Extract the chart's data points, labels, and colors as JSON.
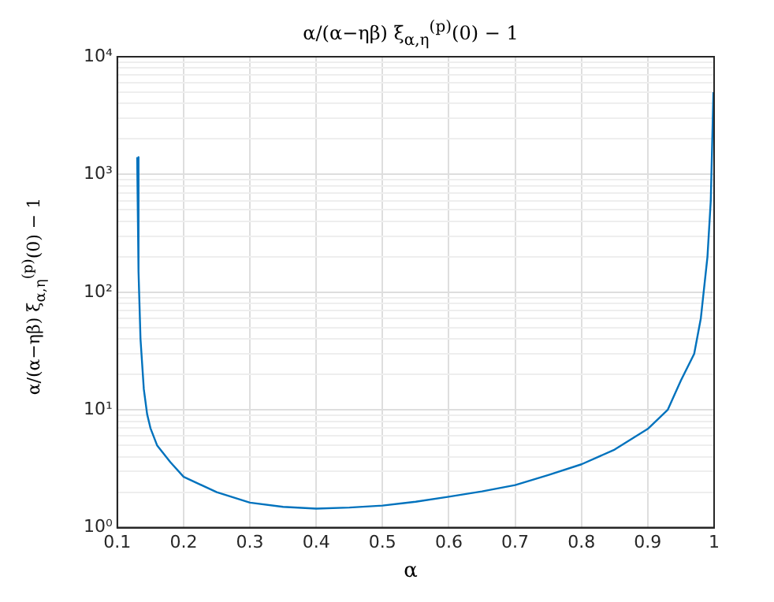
{
  "chart_data": {
    "type": "line",
    "title": "α/(α−ηβ) ξ$_{α,η}$$^{(p)}$(0) − 1",
    "xlabel": "α",
    "ylabel": "α/(α−ηβ) ξ$_{α,η}$$^{(p)}$(0) − 1",
    "x": [
      0.13,
      0.132,
      0.135,
      0.14,
      0.145,
      0.15,
      0.16,
      0.18,
      0.2,
      0.25,
      0.3,
      0.35,
      0.4,
      0.45,
      0.5,
      0.55,
      0.6,
      0.65,
      0.7,
      0.75,
      0.8,
      0.85,
      0.9,
      0.93,
      0.95,
      0.97,
      0.98,
      0.99,
      0.995,
      0.999
    ],
    "series": [
      {
        "color": "#0072bd",
        "values": [
          1400,
          150,
          40,
          15,
          9.2,
          7,
          5,
          3.6,
          2.7,
          2,
          1.63,
          1.5,
          1.45,
          1.48,
          1.54,
          1.66,
          1.83,
          2.03,
          2.3,
          2.8,
          3.45,
          4.6,
          6.9,
          10,
          17.8,
          30,
          60,
          200,
          600,
          5000
        ]
      }
    ],
    "xlim": [
      0.1,
      1
    ],
    "xticks": [
      0.1,
      0.2,
      0.3,
      0.4,
      0.5,
      0.6,
      0.7,
      0.8,
      0.9,
      1
    ],
    "ylim": [
      1,
      10000
    ],
    "log": "y",
    "yticks": [
      {
        "value": 1,
        "label": "10⁰"
      },
      {
        "value": 2,
        "label": null
      },
      {
        "value": 3,
        "label": null
      },
      {
        "value": 4,
        "label": null
      },
      {
        "value": 5,
        "label": null
      },
      {
        "value": 6,
        "label": null
      },
      {
        "value": 7,
        "label": null
      },
      {
        "value": 8,
        "label": null
      },
      {
        "value": 9,
        "label": null
      },
      {
        "value": 10,
        "label": "10¹"
      },
      {
        "value": 20,
        "label": null
      },
      {
        "value": 30,
        "label": null
      },
      {
        "value": 40,
        "label": null
      },
      {
        "value": 50,
        "label": null
      },
      {
        "value": 60,
        "label": null
      },
      {
        "value": 70,
        "label": null
      },
      {
        "value": 80,
        "label": null
      },
      {
        "value": 90,
        "label": null
      },
      {
        "value": 100,
        "label": "10²"
      },
      {
        "value": 200,
        "label": null
      },
      {
        "value": 300,
        "label": null
      },
      {
        "value": 400,
        "label": null
      },
      {
        "value": 500,
        "label": null
      },
      {
        "value": 600,
        "label": null
      },
      {
        "value": 700,
        "label": null
      },
      {
        "value": 800,
        "label": null
      },
      {
        "value": 900,
        "label": null
      },
      {
        "value": 1000,
        "label": "10³"
      },
      {
        "value": 2000,
        "label": null
      },
      {
        "value": 3000,
        "label": null
      },
      {
        "value": 4000,
        "label": null
      },
      {
        "value": 5000,
        "label": null
      },
      {
        "value": 6000,
        "label": null
      },
      {
        "value": 7000,
        "label": null
      },
      {
        "value": 8000,
        "label": null
      },
      {
        "value": 9000,
        "label": null
      },
      {
        "value": 10000,
        "label": "10⁴"
      }
    ],
    "grid": true,
    "legend": false,
    "marker": "none",
    "line_style": "solid"
  }
}
